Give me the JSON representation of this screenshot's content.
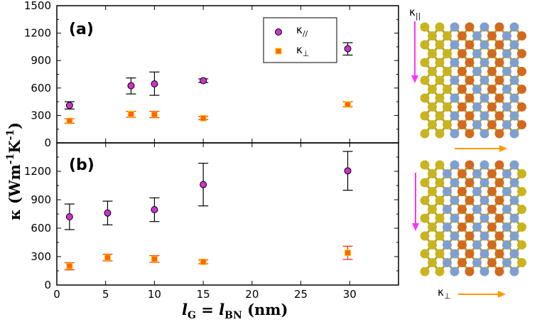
{
  "chart_data": [
    {
      "type": "scatter",
      "panel_label": "(a)",
      "xlim": [
        0,
        35
      ],
      "ylim": [
        0,
        1500
      ],
      "yticks": [
        0,
        300,
        600,
        900,
        1200,
        1500
      ],
      "series": [
        {
          "name": "κ//",
          "legend": "κ",
          "legend_sub": "//",
          "color": "#cc33cc",
          "marker": "circle",
          "x": [
            1.3,
            7.6,
            10,
            15,
            29.8
          ],
          "y": [
            410,
            625,
            645,
            680,
            1030
          ],
          "err_low": [
            370,
            535,
            520,
            660,
            960
          ],
          "err_high": [
            450,
            710,
            775,
            700,
            1095
          ]
        },
        {
          "name": "κ⊥",
          "legend": "κ",
          "legend_sub": "⊥",
          "color": "#ff6600",
          "marker": "square",
          "x": [
            1.3,
            7.6,
            10,
            15,
            29.8
          ],
          "y": [
            240,
            315,
            310,
            270,
            420
          ],
          "err_low": [
            215,
            280,
            275,
            255,
            395
          ],
          "err_high": [
            265,
            345,
            345,
            290,
            450
          ]
        }
      ]
    },
    {
      "type": "scatter",
      "panel_label": "(b)",
      "xlim": [
        0,
        35
      ],
      "ylim": [
        0,
        1500
      ],
      "yticks": [
        0,
        300,
        600,
        900,
        1200
      ],
      "series": [
        {
          "name": "κ//",
          "color": "#cc33cc",
          "marker": "circle",
          "x": [
            1.3,
            5.2,
            10,
            15,
            29.8
          ],
          "y": [
            720,
            760,
            795,
            1060,
            1205
          ],
          "err_low": [
            585,
            635,
            670,
            835,
            1000
          ],
          "err_high": [
            855,
            885,
            920,
            1285,
            1410
          ]
        },
        {
          "name": "κ⊥",
          "color": "#ff6600",
          "marker": "square",
          "x": [
            1.3,
            5.2,
            10,
            15,
            29.8
          ],
          "y": [
            200,
            290,
            275,
            245,
            340
          ],
          "err_low": [
            160,
            255,
            240,
            225,
            270
          ],
          "err_high": [
            235,
            325,
            310,
            265,
            410
          ]
        }
      ]
    }
  ],
  "x_axis": {
    "ticks": [
      0,
      5,
      10,
      15,
      20,
      25,
      30
    ],
    "title": {
      "l1": "l",
      "sub1": "G",
      "eq": " = ",
      "l2": "l",
      "sub2": "BN",
      "unit": " (nm)"
    }
  },
  "y_axis": {
    "title": {
      "kappa": "κ (Wm",
      "sup1": "-1",
      "k": "K",
      "sup2": "-1",
      "close": ")"
    }
  },
  "structures": {
    "top_label": "κ",
    "top_label_sub": "||",
    "bottom_label": "κ",
    "bottom_label_sub": "⊥",
    "colors": {
      "carbon": "#c8b41e",
      "boron": "#d2691e",
      "nitrogen": "#7f9fcf",
      "arrow_v": "#ff33ff",
      "arrow_h": "#ff9900"
    }
  }
}
